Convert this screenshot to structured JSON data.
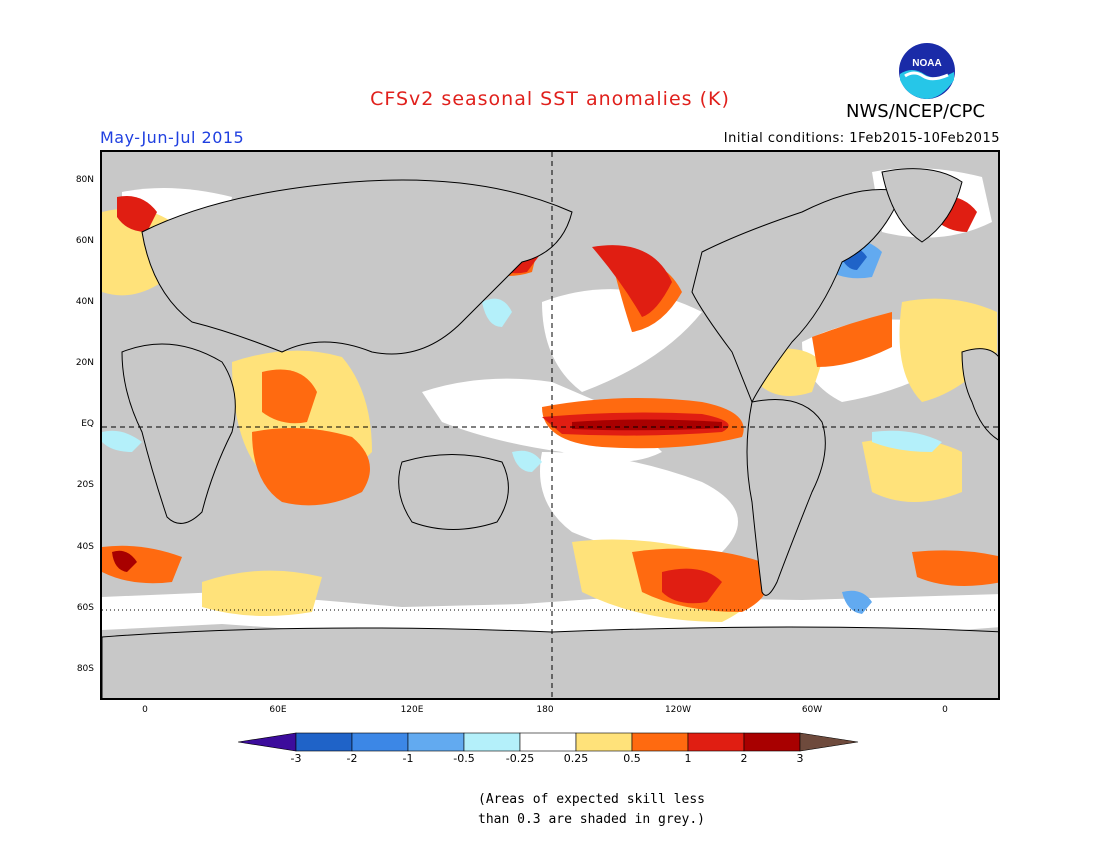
{
  "header": {
    "title": "CFSv2 seasonal SST anomalies (K)",
    "agency": "NWS/NCEP/CPC",
    "period": "May-Jun-Jul 2015",
    "initial_conditions": "Initial conditions: 1Feb2015-10Feb2015"
  },
  "logo": {
    "text": "NOAA",
    "icon": "noaa-logo-icon"
  },
  "map": {
    "projection": "cylindrical equidistant",
    "background_color": "#c8c8c8",
    "land_color": "#c8c8c8",
    "reference_lines": [
      "Equator (dashed)",
      "180 meridian (dashed)",
      "60S (dotted)"
    ],
    "lat_labels": [
      "80N",
      "60N",
      "40N",
      "20N",
      "EQ",
      "20S",
      "40S",
      "60S",
      "80S"
    ],
    "lon_labels": [
      "0",
      "60E",
      "120E",
      "180",
      "120W",
      "60W",
      "0"
    ]
  },
  "colorbar": {
    "tick_labels": [
      "-3",
      "-2",
      "-1",
      "-0.5",
      "-0.25",
      "0.25",
      "0.5",
      "1",
      "2",
      "3"
    ],
    "bins": [
      {
        "range": "< -3",
        "color": "#3c0c9c"
      },
      {
        "range": "-3 to -2",
        "color": "#1f63c8"
      },
      {
        "range": "-2 to -1",
        "color": "#3c87e6"
      },
      {
        "range": "-1 to -0.5",
        "color": "#62aaf0"
      },
      {
        "range": "-0.5 to -0.25",
        "color": "#b4f0fa"
      },
      {
        "range": "-0.25 to 0.25",
        "color": "#ffffff"
      },
      {
        "range": "0.25 to 0.5",
        "color": "#ffe27a"
      },
      {
        "range": "0.5 to 1",
        "color": "#ff6a10"
      },
      {
        "range": "1 to 2",
        "color": "#e01e12"
      },
      {
        "range": "2 to 3",
        "color": "#a80000"
      },
      {
        "range": "> 3",
        "color": "#6e4a3c"
      }
    ]
  },
  "note": {
    "line1": "(Areas of expected skill less",
    "line2": "than 0.3 are shaded in grey.)"
  }
}
